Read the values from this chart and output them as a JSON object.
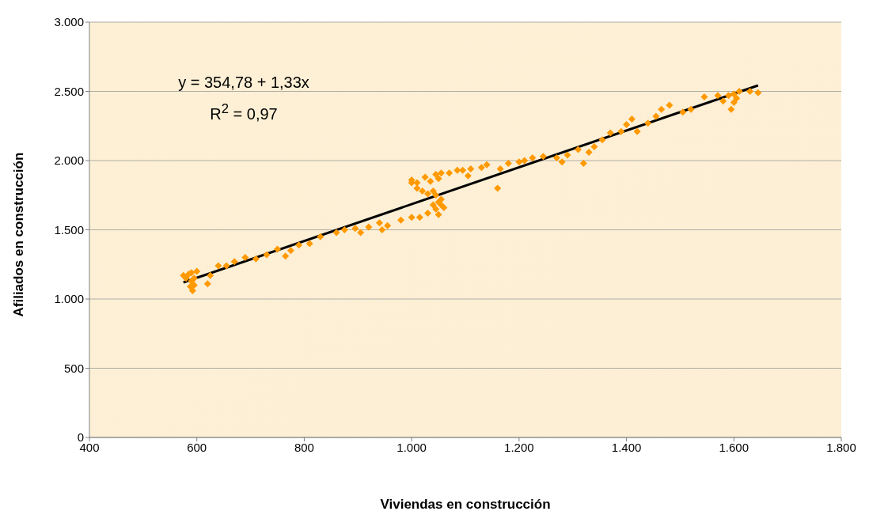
{
  "chart_data": {
    "type": "scatter",
    "xlabel": "Viviendas en construcción",
    "ylabel": "Afiliados en construcción",
    "annotations": [
      "y = 354,78 + 1,33x",
      "R$^{2}$ = 0,97"
    ],
    "xlim": [
      400,
      1800
    ],
    "xticks": [
      400,
      600,
      800,
      {
        "value": 1000,
        "label": "1.000"
      },
      {
        "value": 1200,
        "label": "1.200"
      },
      {
        "value": 1400,
        "label": "1.400"
      },
      {
        "value": 1600,
        "label": "1.600"
      },
      {
        "value": 1800,
        "label": "1.800"
      }
    ],
    "ylim": [
      0,
      3000
    ],
    "yticks": [
      0,
      500,
      {
        "value": 1000,
        "label": "1.000"
      },
      {
        "value": 1500,
        "label": "1.500"
      },
      {
        "value": 2000,
        "label": "2.000"
      },
      {
        "value": 2500,
        "label": "2.500"
      },
      {
        "value": 3000,
        "label": "3.000"
      }
    ],
    "grid": "y",
    "marker": "diamond",
    "series": [
      {
        "color": "#ff9900",
        "x": [
          575,
          580,
          585,
          590,
          595,
          592,
          590,
          600,
          595,
          588,
          620,
          625,
          640,
          655,
          670,
          690,
          710,
          730,
          750,
          765,
          775,
          790,
          810,
          830,
          860,
          875,
          895,
          905,
          920,
          940,
          945,
          955,
          980,
          1000,
          1015,
          1030,
          1040,
          1045,
          1050,
          1055,
          1045,
          1050,
          1055,
          1060,
          1040,
          1030,
          1020,
          1010,
          1000,
          1000,
          1010,
          1025,
          1035,
          1050,
          1045,
          1055,
          1070,
          1085,
          1095,
          1105,
          1110,
          1130,
          1140,
          1160,
          1165,
          1180,
          1200,
          1210,
          1225,
          1245,
          1270,
          1280,
          1290,
          1310,
          1320,
          1330,
          1340,
          1355,
          1370,
          1390,
          1400,
          1410,
          1420,
          1440,
          1455,
          1465,
          1480,
          1505,
          1520,
          1545,
          1570,
          1580,
          1590,
          1595,
          1600,
          1605,
          1600,
          1610,
          1630,
          1645
        ],
        "values": [
          1170,
          1150,
          1180,
          1190,
          1100,
          1060,
          1130,
          1200,
          1150,
          1090,
          1110,
          1170,
          1240,
          1240,
          1270,
          1300,
          1290,
          1320,
          1360,
          1310,
          1350,
          1390,
          1400,
          1450,
          1480,
          1500,
          1510,
          1480,
          1520,
          1550,
          1500,
          1530,
          1570,
          1590,
          1590,
          1620,
          1680,
          1650,
          1700,
          1720,
          1750,
          1610,
          1680,
          1660,
          1780,
          1760,
          1780,
          1800,
          1840,
          1860,
          1840,
          1880,
          1850,
          1870,
          1900,
          1910,
          1910,
          1930,
          1930,
          1890,
          1940,
          1950,
          1970,
          1800,
          1940,
          1980,
          1990,
          2000,
          2020,
          2030,
          2020,
          1990,
          2040,
          2080,
          1980,
          2060,
          2100,
          2150,
          2200,
          2210,
          2260,
          2300,
          2210,
          2270,
          2320,
          2370,
          2400,
          2350,
          2370,
          2460,
          2470,
          2430,
          2470,
          2370,
          2420,
          2450,
          2480,
          2500,
          2500,
          2490
        ]
      },
      {
        "type": "line",
        "color": "#000000",
        "marker": "none",
        "x": [
          575,
          1645
        ],
        "values": [
          1120,
          2543
        ]
      }
    ]
  }
}
